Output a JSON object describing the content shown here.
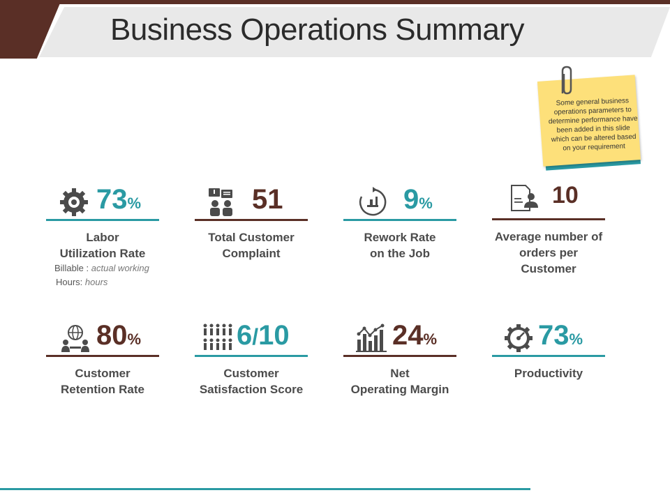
{
  "title": "Business Operations Summary",
  "note": {
    "text": "Some general business operations parameters to determine performance have been added in this slide which can be altered based on your requirement"
  },
  "colors": {
    "teal": "#2a9aa3",
    "brown": "#5a2f26",
    "note_yellow": "#fde07a"
  },
  "metrics": [
    {
      "value": "73",
      "unit": "%",
      "label_1": "Labor",
      "label_2": "Utilization Rate",
      "icon": "gears-icon",
      "billable_label": "Billable : ",
      "billable_value": "actual working",
      "hours_label": "Hours: ",
      "hours_value": "hours"
    },
    {
      "value": "51",
      "unit": "",
      "label_1": "Total Customer",
      "label_2": "Complaint",
      "icon": "customer-complaint-icon"
    },
    {
      "value": "9",
      "unit": "%",
      "label_1": "Rework Rate",
      "label_2": "on the Job",
      "icon": "rework-icon"
    },
    {
      "value": "10",
      "unit": "",
      "label_1": "Average number of",
      "label_2": "orders per Customer",
      "icon": "order-document-icon"
    },
    {
      "value": "80",
      "unit": "%",
      "label_1": "Customer",
      "label_2": "Retention Rate",
      "icon": "globe-people-icon"
    },
    {
      "value": "6",
      "sep": "/",
      "value_2": "10",
      "label_1": "Customer",
      "label_2": "Satisfaction Score",
      "icon": "people-group-icon"
    },
    {
      "value": "24",
      "unit": "%",
      "label_1": "Net",
      "label_2": "Operating Margin",
      "icon": "bar-chart-icon"
    },
    {
      "value": "73",
      "unit": "%",
      "label_1": "Productivity",
      "label_2": "",
      "icon": "speedometer-gear-icon"
    }
  ]
}
